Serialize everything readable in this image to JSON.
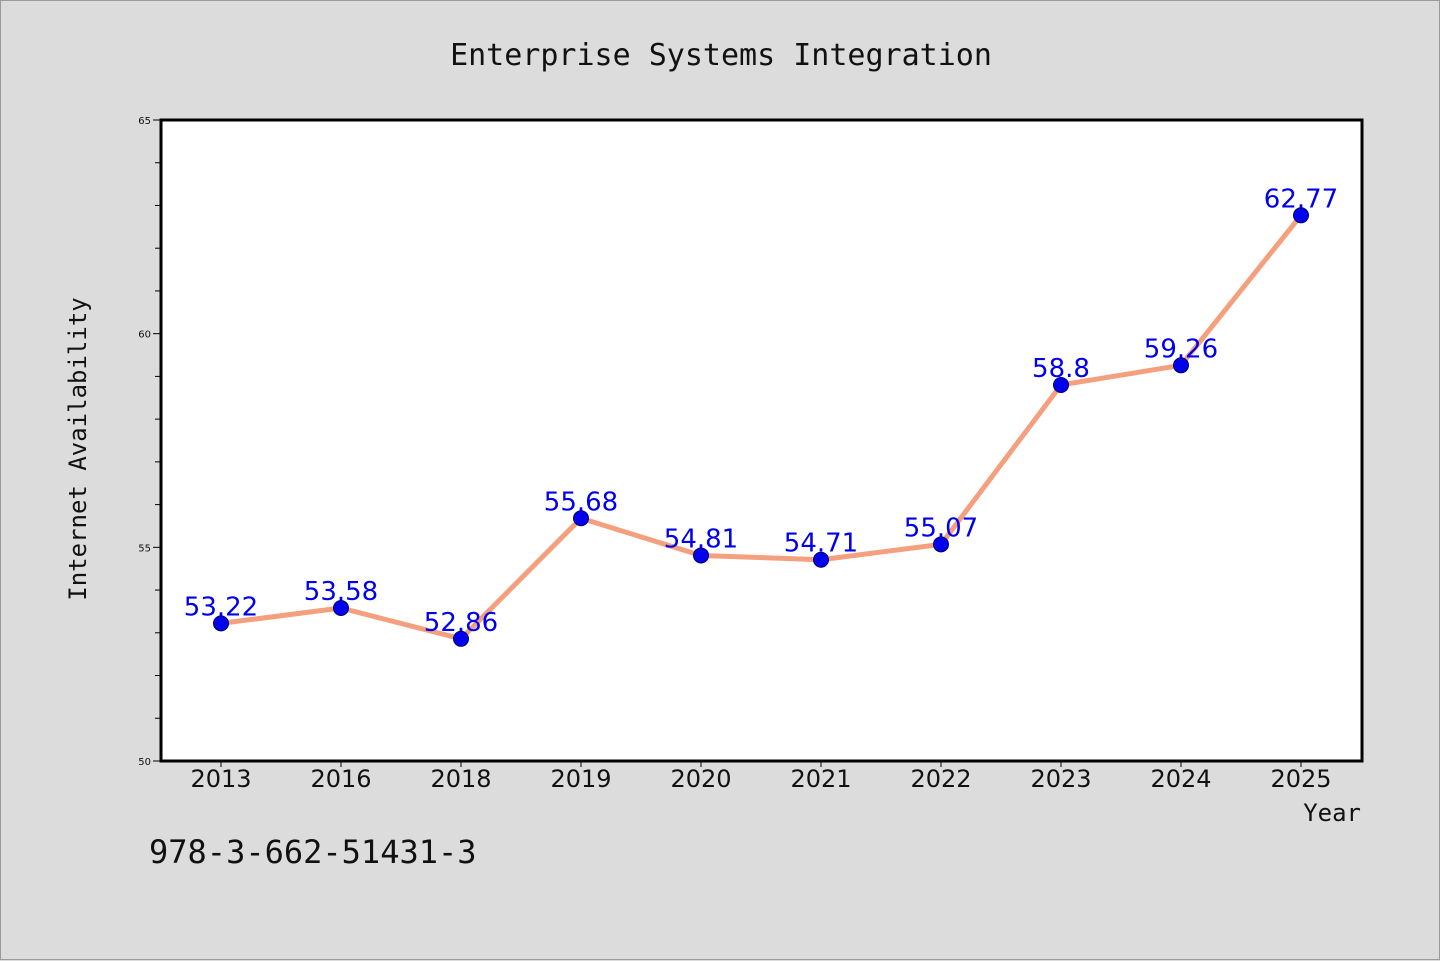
{
  "chart_data": {
    "type": "line",
    "title": "Enterprise Systems Integration",
    "xlabel": "Year",
    "ylabel": "Internet Availability",
    "categories": [
      "2013",
      "2016",
      "2018",
      "2019",
      "2020",
      "2021",
      "2022",
      "2023",
      "2024",
      "2025"
    ],
    "series": [
      {
        "values": [
          53.22,
          53.58,
          52.86,
          55.68,
          54.81,
          54.71,
          55.07,
          58.8,
          59.26,
          62.77
        ]
      }
    ],
    "data_labels": [
      "53.22",
      "53.58",
      "52.86",
      "55.68",
      "54.81",
      "54.71",
      "55.07",
      "58.8",
      "59.26",
      "62.77"
    ],
    "ylim": [
      50,
      65
    ],
    "yticks": [
      50,
      55,
      60,
      65
    ],
    "yticks_minor_step": 1,
    "grid": false,
    "legend": "none",
    "colors": {
      "line": "#f4a07e",
      "marker": "#0000ee",
      "label": "#0000ee",
      "plot_bg": "#ffffff",
      "page_bg": "#dcdcdc"
    }
  },
  "footer": {
    "isbn": "978-3-662-51431-3"
  }
}
